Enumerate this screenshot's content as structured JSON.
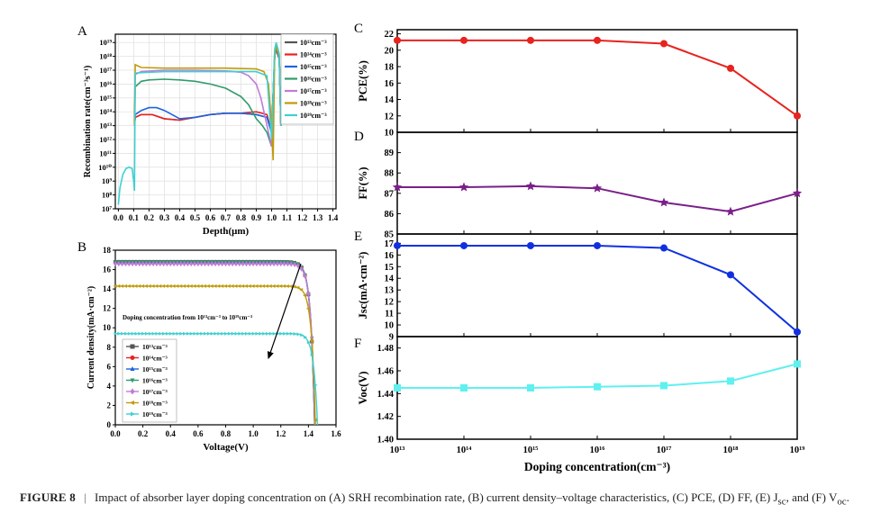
{
  "panel_labels": {
    "A": "A",
    "B": "B",
    "C": "C",
    "D": "D",
    "E": "E",
    "F": "F"
  },
  "caption": {
    "lead": "FIGURE 8",
    "separator": "|",
    "text": "Impact of absorber layer doping concentration on (A) SRH recombination rate, (B) current density–voltage characteristics, (C) PCE, (D) FF, (E) J",
    "jsc_sub": "sc",
    "and": ", and (F) V",
    "voc_sub": "oc",
    "end": "."
  },
  "colors": {
    "c13": "#555555",
    "c14": "#e8231e",
    "c15": "#1f63e0",
    "c16": "#2e9c6a",
    "c17": "#c07ad8",
    "c18": "#c09a0a",
    "c19": "#3fd0d0",
    "pce": "#e8231e",
    "ff": "#7a1f8a",
    "jsc": "#1030e0",
    "voc": "#5ff0f0"
  },
  "chart_data": [
    {
      "id": "A",
      "type": "line",
      "ylabel": "Recombination rate(cm⁻³s⁻¹)",
      "xlabel": "Depth(μm)",
      "x_ticks": [
        "0.0",
        "0.1",
        "0.2",
        "0.3",
        "0.4",
        "0.5",
        "0.6",
        "0.7",
        "0.8",
        "0.9",
        "1.0",
        "1.1",
        "1.2",
        "1.3",
        "1.4"
      ],
      "y_ticks": [
        "10⁷",
        "10⁸",
        "10⁹",
        "10¹⁰",
        "10¹¹",
        "10¹²",
        "10¹³",
        "10¹⁴",
        "10¹⁵",
        "10¹⁶",
        "10¹⁷",
        "10¹⁸",
        "10¹⁹"
      ],
      "xlim": [
        -0.02,
        1.42
      ],
      "ylim_log10": [
        7,
        19.6
      ],
      "legend": [
        "10¹³cm⁻³",
        "10¹⁴cm⁻³",
        "10¹⁵cm⁻³",
        "10¹⁶cm⁻³",
        "10¹⁷cm⁻³",
        "10¹⁸cm⁻³",
        "10¹⁹cm⁻³"
      ],
      "series": [
        {
          "name": "10¹³cm⁻³",
          "x": [
            0.105,
            0.11,
            0.15,
            0.22,
            0.3,
            0.4,
            0.5,
            0.6,
            0.7,
            0.8,
            0.9,
            0.97,
            1.0,
            1.02,
            1.03,
            1.05,
            1.06
          ],
          "log10_y": [
            13.0,
            13.6,
            13.8,
            13.8,
            13.5,
            13.4,
            13.6,
            13.8,
            13.9,
            13.9,
            13.8,
            13.6,
            12.5,
            18.0,
            18.5,
            17.8,
            13.0
          ]
        },
        {
          "name": "10¹⁴cm⁻³",
          "x": [
            0.105,
            0.11,
            0.15,
            0.22,
            0.3,
            0.4,
            0.5,
            0.6,
            0.7,
            0.8,
            0.9,
            0.97,
            1.0,
            1.02,
            1.03,
            1.05,
            1.06
          ],
          "log10_y": [
            13.0,
            13.6,
            13.8,
            13.8,
            13.5,
            13.4,
            13.6,
            13.8,
            13.9,
            13.9,
            14.0,
            13.8,
            12.5,
            18.0,
            18.6,
            17.9,
            13.0
          ]
        },
        {
          "name": "10¹⁵cm⁻³",
          "x": [
            0.105,
            0.11,
            0.15,
            0.2,
            0.25,
            0.3,
            0.4,
            0.5,
            0.6,
            0.7,
            0.8,
            0.9,
            0.97,
            1.0,
            1.02,
            1.03,
            1.05,
            1.06
          ],
          "log10_y": [
            13.0,
            13.8,
            14.1,
            14.3,
            14.3,
            14.1,
            13.5,
            13.6,
            13.8,
            13.9,
            13.9,
            13.8,
            13.6,
            12.5,
            18.0,
            18.6,
            17.9,
            13.0
          ]
        },
        {
          "name": "10¹⁶cm⁻³",
          "x": [
            0.105,
            0.11,
            0.15,
            0.2,
            0.3,
            0.4,
            0.5,
            0.6,
            0.7,
            0.8,
            0.85,
            0.9,
            0.94,
            0.97,
            1.0,
            1.02,
            1.03,
            1.05,
            1.06
          ],
          "log10_y": [
            13.0,
            15.8,
            16.2,
            16.3,
            16.35,
            16.3,
            16.2,
            16.0,
            15.7,
            15.1,
            14.5,
            13.5,
            13.0,
            12.5,
            11.5,
            18.2,
            18.8,
            18.0,
            13.0
          ]
        },
        {
          "name": "10¹⁷cm⁻³",
          "x": [
            0.105,
            0.11,
            0.15,
            0.3,
            0.5,
            0.7,
            0.8,
            0.85,
            0.9,
            0.93,
            0.96,
            0.98,
            1.0,
            1.02,
            1.03,
            1.05,
            1.06
          ],
          "log10_y": [
            13.0,
            16.7,
            16.9,
            17.0,
            17.0,
            16.95,
            16.85,
            16.6,
            16.0,
            15.0,
            13.5,
            12.5,
            11.5,
            18.2,
            18.8,
            18.0,
            13.0
          ]
        },
        {
          "name": "10¹⁸cm⁻³",
          "x": [
            0.105,
            0.11,
            0.15,
            0.3,
            0.5,
            0.7,
            0.9,
            0.95,
            0.98,
            1.0,
            1.01,
            1.02,
            1.03,
            1.05,
            1.06
          ],
          "log10_y": [
            13.0,
            17.4,
            17.2,
            17.15,
            17.15,
            17.15,
            17.1,
            16.9,
            16.0,
            13.0,
            10.5,
            18.0,
            18.7,
            18.0,
            13.0
          ]
        },
        {
          "name": "10¹⁹cm⁻³",
          "x": [
            0.0,
            0.01,
            0.03,
            0.05,
            0.07,
            0.09,
            0.1,
            0.105,
            0.11,
            0.3,
            0.5,
            0.7,
            0.9,
            0.97,
            1.0,
            1.02,
            1.03,
            1.05,
            1.06
          ],
          "log10_y": [
            7.3,
            8.5,
            9.5,
            9.9,
            10.0,
            9.9,
            9.0,
            8.3,
            16.8,
            16.9,
            16.9,
            16.9,
            16.9,
            16.6,
            12.0,
            18.5,
            19.0,
            18.2,
            13.0
          ]
        }
      ]
    },
    {
      "id": "B",
      "type": "line",
      "ylabel": "Current density(mA·cm⁻²)",
      "xlabel": "Voltage(V)",
      "annotation": "Doping concentration from 10¹³cm⁻³ to 10¹⁹cm⁻³",
      "x_ticks": [
        "0.0",
        "0.2",
        "0.4",
        "0.6",
        "0.8",
        "1.0",
        "1.2",
        "1.4",
        "1.6"
      ],
      "y_ticks": [
        "0",
        "2",
        "4",
        "6",
        "8",
        "10",
        "12",
        "14",
        "16",
        "18"
      ],
      "xlim": [
        0,
        1.6
      ],
      "ylim": [
        0,
        18
      ],
      "legend": [
        "10¹³cm⁻³",
        "10¹⁴cm⁻³",
        "10¹⁵cm⁻³",
        "10¹⁶cm⁻³",
        "10¹⁷cm⁻³",
        "10¹⁸cm⁻³",
        "10¹⁹cm⁻³"
      ],
      "series": [
        {
          "name": "10¹³cm⁻³",
          "jsc": 16.8,
          "voc": 1.445
        },
        {
          "name": "10¹⁴cm⁻³",
          "jsc": 16.8,
          "voc": 1.445
        },
        {
          "name": "10¹⁵cm⁻³",
          "jsc": 16.8,
          "voc": 1.445
        },
        {
          "name": "10¹⁶cm⁻³",
          "jsc": 16.8,
          "voc": 1.446
        },
        {
          "name": "10¹⁷cm⁻³",
          "jsc": 16.6,
          "voc": 1.447
        },
        {
          "name": "10¹⁸cm⁻³",
          "jsc": 14.3,
          "voc": 1.451
        },
        {
          "name": "10¹⁹cm⁻³",
          "jsc": 9.4,
          "voc": 1.466
        }
      ]
    },
    {
      "id": "C",
      "type": "line",
      "ylabel": "PCE(%)",
      "y_ticks": [
        "10",
        "12",
        "14",
        "16",
        "18",
        "20",
        "22"
      ],
      "ylim": [
        10,
        22.5
      ],
      "x_log10": [
        13,
        14,
        15,
        16,
        17,
        18,
        19
      ],
      "values": [
        21.2,
        21.2,
        21.2,
        21.2,
        20.8,
        17.8,
        12.0
      ]
    },
    {
      "id": "D",
      "type": "line",
      "ylabel": "FF(%)",
      "y_ticks": [
        "85",
        "86",
        "87",
        "88",
        "89"
      ],
      "ylim": [
        85,
        90
      ],
      "x_log10": [
        13,
        14,
        15,
        16,
        17,
        18,
        19
      ],
      "values": [
        87.3,
        87.3,
        87.35,
        87.25,
        86.55,
        86.1,
        87.0
      ]
    },
    {
      "id": "E",
      "type": "line",
      "ylabel": "Jsc(mA·cm⁻²)",
      "y_ticks": [
        "9",
        "10",
        "11",
        "12",
        "13",
        "14",
        "15",
        "16",
        "17"
      ],
      "ylim": [
        9,
        17.8
      ],
      "x_log10": [
        13,
        14,
        15,
        16,
        17,
        18,
        19
      ],
      "values": [
        16.8,
        16.8,
        16.8,
        16.8,
        16.6,
        14.3,
        9.4
      ]
    },
    {
      "id": "F",
      "type": "line",
      "ylabel": "Voc(V)",
      "xlabel": "Doping concentration(cm⁻³)",
      "x_ticks": [
        "10¹³",
        "10¹⁴",
        "10¹⁵",
        "10¹⁶",
        "10¹⁷",
        "10¹⁸",
        "10¹⁹"
      ],
      "y_ticks": [
        "1.40",
        "1.42",
        "1.44",
        "1.46",
        "1.48"
      ],
      "ylim": [
        1.4,
        1.49
      ],
      "x_log10": [
        13,
        14,
        15,
        16,
        17,
        18,
        19
      ],
      "values": [
        1.445,
        1.445,
        1.445,
        1.446,
        1.447,
        1.451,
        1.466
      ]
    }
  ]
}
